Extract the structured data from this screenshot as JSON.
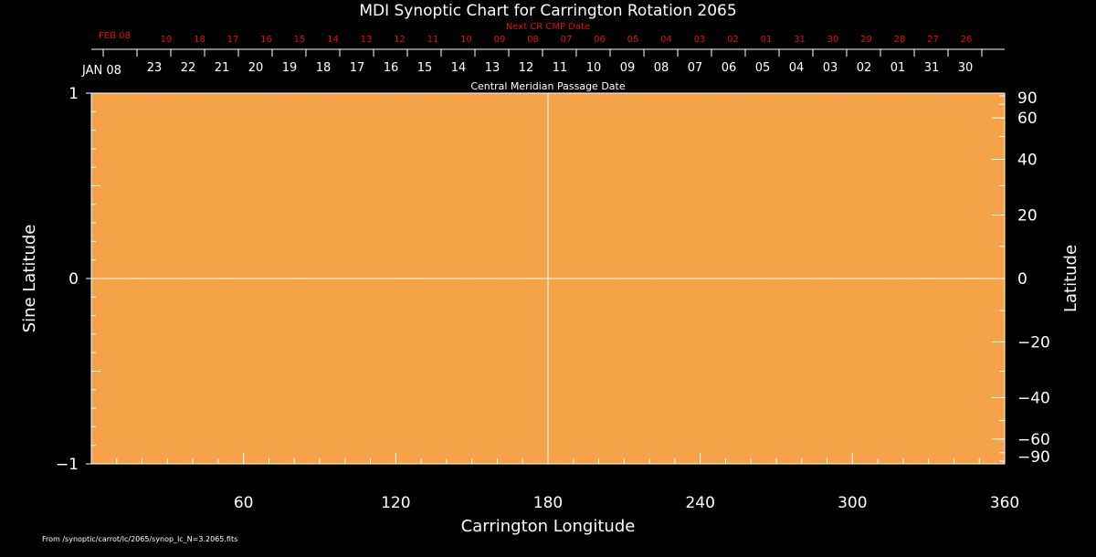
{
  "chart_data": {
    "type": "heatmap",
    "title": "MDI Synoptic Chart for Carrington Rotation 2065",
    "xlabel": "Carrington Longitude",
    "ylabel_left": "Sine Latitude",
    "ylabel_right": "Latitude",
    "xlim": [
      0,
      360
    ],
    "ylim": [
      -1,
      1
    ],
    "x_ticks": [
      60,
      120,
      180,
      240,
      300,
      360
    ],
    "y_ticks_left": [
      {
        "value": 1,
        "label": "1"
      },
      {
        "value": 0,
        "label": "0"
      },
      {
        "value": -1,
        "label": "−1"
      }
    ],
    "y_ticks_right": [
      {
        "value": 90,
        "label": "90"
      },
      {
        "value": 60,
        "label": "60"
      },
      {
        "value": 40,
        "label": "40"
      },
      {
        "value": 20,
        "label": "20"
      },
      {
        "value": 0,
        "label": "0"
      },
      {
        "value": -20,
        "label": "−20"
      },
      {
        "value": -40,
        "label": "−40"
      },
      {
        "value": -60,
        "label": "−60"
      },
      {
        "value": -90,
        "label": "−90"
      }
    ],
    "crosshair": {
      "longitude": 180,
      "sine_latitude": 0
    },
    "colors": {
      "field_base": "#f5a24a",
      "field_light": "#f7c27a",
      "field_dark": "#d76a12",
      "crosshair": "#ffffff"
    },
    "cmp_dates": {
      "label": "Central Meridian Passage Date",
      "start_label": "JAN 08",
      "dates": [
        "23",
        "22",
        "21",
        "20",
        "19",
        "18",
        "17",
        "16",
        "15",
        "14",
        "13",
        "12",
        "11",
        "10",
        "09",
        "08",
        "07",
        "06",
        "05",
        "04",
        "03",
        "02",
        "01",
        "31",
        "30"
      ]
    },
    "next_cr_dates": {
      "label": "Next CR CMP Date",
      "start_label": "FEB 08",
      "dates": [
        "19",
        "18",
        "17",
        "16",
        "15",
        "14",
        "13",
        "12",
        "11",
        "10",
        "09",
        "08",
        "07",
        "06",
        "05",
        "04",
        "03",
        "02",
        "01",
        "31",
        "30",
        "29",
        "28",
        "27",
        "26"
      ]
    }
  },
  "footer": "From /synoptic/carrot/lc/2065/synop_lc_N=3.2065.fits"
}
